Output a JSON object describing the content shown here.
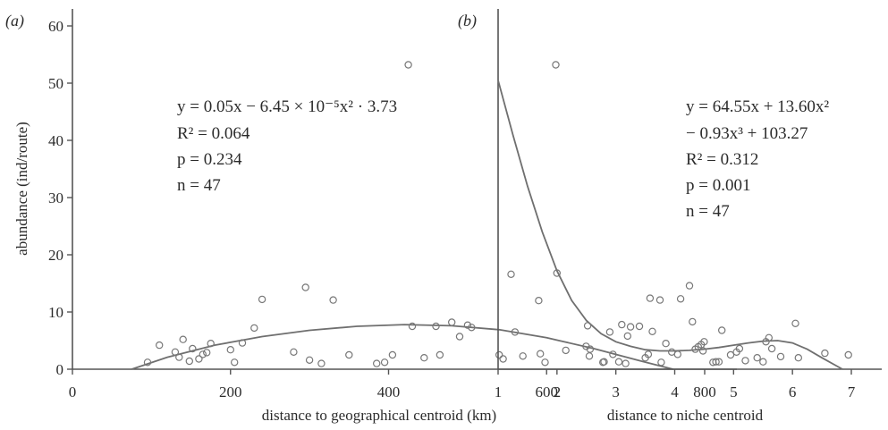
{
  "colors": {
    "axis": "#555555",
    "curve": "#6f6f6f",
    "marker": "#777777",
    "text": "#2b2b2b"
  },
  "ylabel": "abundance (ind/route)",
  "chart_data": [
    {
      "type": "scatter",
      "panel": "(a)",
      "xlabel": "distance to geographical centroid (km)",
      "ylabel": "abundance (ind/route)",
      "xlim": [
        0,
        820
      ],
      "ylim": [
        0,
        63
      ],
      "xticks": [
        "0",
        "200",
        "400",
        "600",
        "800"
      ],
      "yticks": [
        "0",
        "10",
        "20",
        "30",
        "40",
        "50",
        "60"
      ],
      "annotation": [
        "y = 0.05x − 6.45 × 10⁻⁵x² · 3.73",
        "R² = 0.064",
        "p = 0.234",
        "n = 47"
      ],
      "fit_curve": [
        [
          75,
          0
        ],
        [
          120,
          2.1
        ],
        [
          180,
          4.2
        ],
        [
          240,
          5.7
        ],
        [
          300,
          6.8
        ],
        [
          360,
          7.5
        ],
        [
          420,
          7.8
        ],
        [
          480,
          7.6
        ],
        [
          540,
          6.9
        ],
        [
          600,
          5.5
        ],
        [
          660,
          3.6
        ],
        [
          720,
          1.4
        ],
        [
          760,
          0
        ]
      ],
      "points": [
        [
          95,
          1.2
        ],
        [
          110,
          4.2
        ],
        [
          130,
          3.0
        ],
        [
          135,
          2.1
        ],
        [
          140,
          5.2
        ],
        [
          148,
          1.4
        ],
        [
          152,
          3.6
        ],
        [
          160,
          1.8
        ],
        [
          165,
          2.6
        ],
        [
          170,
          2.9
        ],
        [
          175,
          4.5
        ],
        [
          200,
          3.4
        ],
        [
          205,
          1.2
        ],
        [
          215,
          4.6
        ],
        [
          230,
          7.2
        ],
        [
          240,
          12.2
        ],
        [
          280,
          3.0
        ],
        [
          295,
          14.3
        ],
        [
          300,
          1.6
        ],
        [
          315,
          1.0
        ],
        [
          330,
          12.1
        ],
        [
          350,
          2.5
        ],
        [
          385,
          1.0
        ],
        [
          395,
          1.2
        ],
        [
          405,
          2.5
        ],
        [
          425,
          53.2
        ],
        [
          430,
          7.5
        ],
        [
          445,
          2.0
        ],
        [
          460,
          7.5
        ],
        [
          465,
          2.5
        ],
        [
          480,
          8.2
        ],
        [
          490,
          5.7
        ],
        [
          500,
          7.7
        ],
        [
          505,
          7.3
        ],
        [
          540,
          2.5
        ],
        [
          545,
          1.8
        ],
        [
          555,
          16.6
        ],
        [
          560,
          6.5
        ],
        [
          570,
          2.3
        ],
        [
          590,
          12.0
        ],
        [
          592,
          2.7
        ],
        [
          598,
          1.2
        ],
        [
          650,
          4.0
        ],
        [
          655,
          3.5
        ],
        [
          680,
          6.5
        ],
        [
          700,
          1.0
        ],
        [
          745,
          1.2
        ]
      ]
    },
    {
      "type": "scatter",
      "panel": "(b)",
      "xlabel": "distance to niche centroid",
      "ylabel": "",
      "xlim": [
        1,
        7.1
      ],
      "ylim": [
        0,
        63
      ],
      "xticks": [
        "1",
        "2",
        "3",
        "4",
        "5",
        "6",
        "7"
      ],
      "yticks": [],
      "annotation": [
        "y = 64.55x + 13.60x²",
        "− 0.93x³ + 103.27",
        "R² = 0.312",
        "p = 0.001",
        "n = 47"
      ],
      "fit_curve": [
        [
          1.0,
          50.5
        ],
        [
          1.25,
          41.0
        ],
        [
          1.5,
          32.0
        ],
        [
          1.75,
          24.0
        ],
        [
          2.0,
          17.2
        ],
        [
          2.25,
          12.0
        ],
        [
          2.5,
          8.5
        ],
        [
          2.75,
          6.2
        ],
        [
          3.0,
          4.8
        ],
        [
          3.25,
          4.0
        ],
        [
          3.5,
          3.4
        ],
        [
          3.75,
          3.2
        ],
        [
          4.0,
          3.2
        ],
        [
          4.25,
          3.3
        ],
        [
          4.5,
          3.5
        ],
        [
          4.75,
          3.8
        ],
        [
          5.0,
          4.2
        ],
        [
          5.25,
          4.6
        ],
        [
          5.5,
          4.9
        ],
        [
          5.75,
          5.0
        ],
        [
          6.0,
          4.6
        ],
        [
          6.25,
          3.5
        ],
        [
          6.5,
          2.0
        ],
        [
          6.85,
          0
        ]
      ],
      "points": [
        [
          1.98,
          53.2
        ],
        [
          2.0,
          16.8
        ],
        [
          2.15,
          3.3
        ],
        [
          2.52,
          7.6
        ],
        [
          2.55,
          2.3
        ],
        [
          2.78,
          1.2
        ],
        [
          2.8,
          1.3
        ],
        [
          2.95,
          2.6
        ],
        [
          3.05,
          1.3
        ],
        [
          3.1,
          7.8
        ],
        [
          3.2,
          5.8
        ],
        [
          3.25,
          7.4
        ],
        [
          3.4,
          7.5
        ],
        [
          3.5,
          2.0
        ],
        [
          3.55,
          2.6
        ],
        [
          3.58,
          12.4
        ],
        [
          3.62,
          6.6
        ],
        [
          3.75,
          12.1
        ],
        [
          3.85,
          4.5
        ],
        [
          3.95,
          3.0
        ],
        [
          4.05,
          2.6
        ],
        [
          4.1,
          12.3
        ],
        [
          4.25,
          14.6
        ],
        [
          4.3,
          8.3
        ],
        [
          4.35,
          3.5
        ],
        [
          4.4,
          3.9
        ],
        [
          4.45,
          4.3
        ],
        [
          4.48,
          3.2
        ],
        [
          4.5,
          4.8
        ],
        [
          4.65,
          1.2
        ],
        [
          4.7,
          1.3
        ],
        [
          4.75,
          1.3
        ],
        [
          4.8,
          6.8
        ],
        [
          4.95,
          2.5
        ],
        [
          5.05,
          3.0
        ],
        [
          5.1,
          3.6
        ],
        [
          5.2,
          1.5
        ],
        [
          5.4,
          2.0
        ],
        [
          5.5,
          1.3
        ],
        [
          5.55,
          4.8
        ],
        [
          5.6,
          5.5
        ],
        [
          5.65,
          3.6
        ],
        [
          5.8,
          2.2
        ],
        [
          6.05,
          8.0
        ],
        [
          6.1,
          2.0
        ],
        [
          6.55,
          2.8
        ],
        [
          6.95,
          2.5
        ]
      ]
    }
  ]
}
